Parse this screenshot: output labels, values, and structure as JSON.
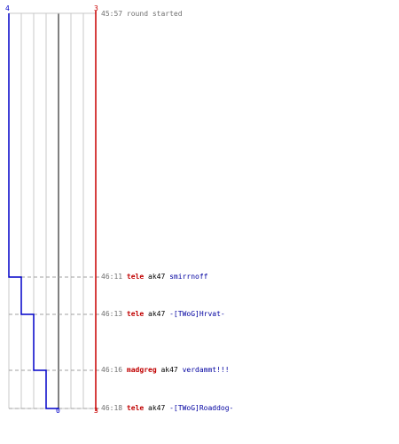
{
  "colors": {
    "team_blue": "#0000c8",
    "team_red": "#c80000",
    "grid": "#c8c8c8",
    "baseline": "#808080",
    "dash": "#a0a0a0"
  },
  "counts": {
    "blue_start": "4",
    "red_start": "3",
    "blue_end": "0",
    "red_end": "3"
  },
  "round_start": {
    "time": "45:57",
    "text": "round started"
  },
  "events": [
    {
      "time": "46:11",
      "killer": "tele",
      "weapon": "ak47",
      "victim": "smirrnoff"
    },
    {
      "time": "46:13",
      "killer": "tele",
      "weapon": "ak47",
      "victim": "-[TWoG]Hrvat-"
    },
    {
      "time": "46:16",
      "killer": "madgreg",
      "weapon": "ak47",
      "victim": "verdammt!!!"
    },
    {
      "time": "46:18",
      "killer": "tele",
      "weapon": "ak47",
      "victim": "-[TWoG]Roaddog-"
    }
  ],
  "chart_data": {
    "type": "line",
    "x": [
      "45:57",
      "46:11",
      "46:13",
      "46:16",
      "46:18"
    ],
    "series": [
      {
        "values": [
          4,
          3,
          2,
          1,
          0
        ],
        "color": "#0000c8"
      },
      {
        "values": [
          3,
          3,
          3,
          3,
          3
        ],
        "color": "#c80000"
      }
    ],
    "ylim": [
      0,
      4
    ]
  }
}
